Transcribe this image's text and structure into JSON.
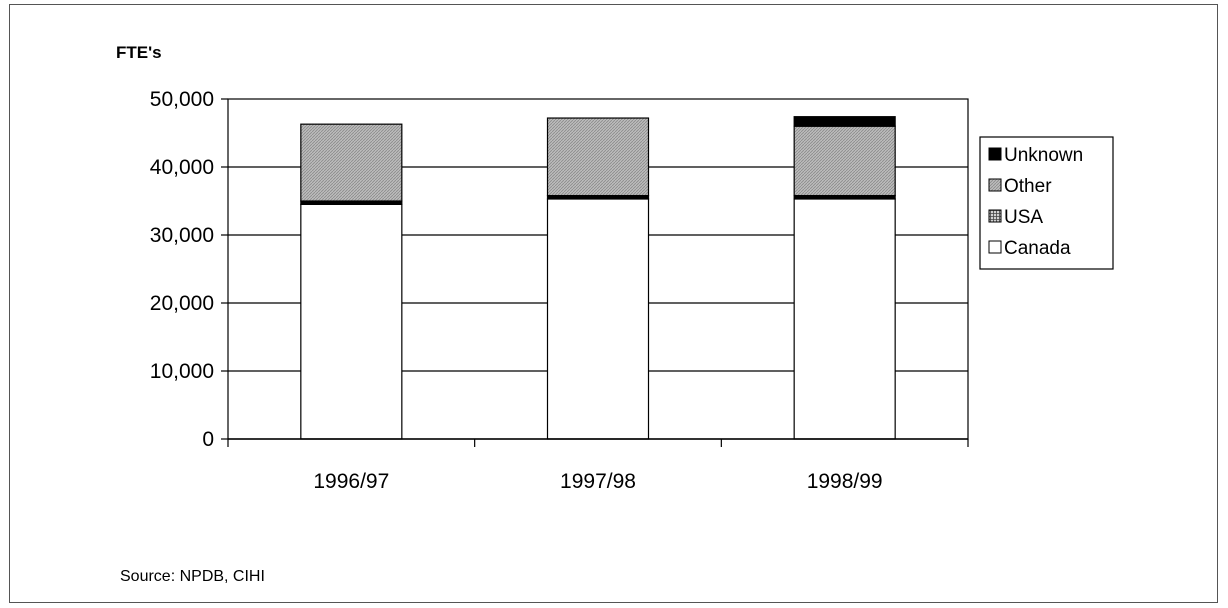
{
  "chart_data": {
    "type": "bar",
    "stacked": true,
    "ylabel": "FTE's",
    "xlabel": "",
    "ylim": [
      0,
      50000
    ],
    "yticks": [
      0,
      10000,
      20000,
      30000,
      40000,
      50000
    ],
    "ytick_labels": [
      "0",
      "10,000",
      "20,000",
      "30,000",
      "40,000",
      "50,000"
    ],
    "categories": [
      "1996/97",
      "1997/98",
      "1998/99"
    ],
    "series": [
      {
        "name": "Canada",
        "values": [
          34500,
          35300,
          35300
        ],
        "color": "#ffffff"
      },
      {
        "name": "USA",
        "values": [
          500,
          500,
          500
        ],
        "color": "#000000"
      },
      {
        "name": "Other",
        "values": [
          11300,
          11400,
          10200
        ],
        "color": "#b4b4b4"
      },
      {
        "name": "Unknown",
        "values": [
          0,
          0,
          1400
        ],
        "color": "#000000"
      }
    ],
    "legend": {
      "position": "right",
      "order": [
        "Unknown",
        "Other",
        "USA",
        "Canada"
      ]
    },
    "grid": true,
    "source": "Source: NPDB, CIHI"
  }
}
